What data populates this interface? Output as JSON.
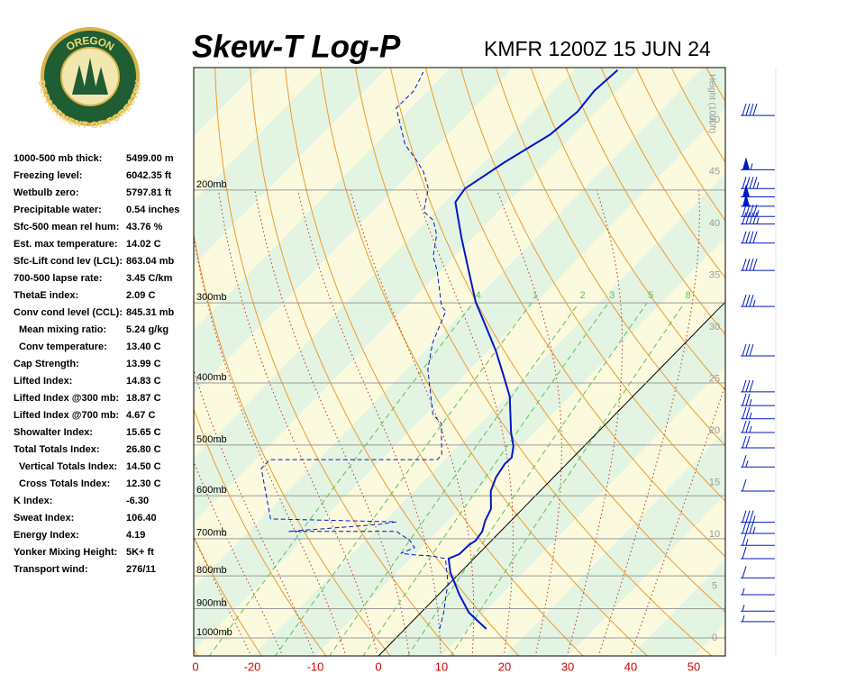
{
  "logo": {
    "top": "OREGON",
    "bottom": "DEPARTMENT OF FORESTRY"
  },
  "title": "Skew-T Log-P",
  "station": "KMFR 1200Z 15 JUN 24",
  "indices": [
    [
      "1000-500 mb thick:",
      "5499.00 m"
    ],
    [
      "Freezing level:",
      "6042.35 ft"
    ],
    [
      "Wetbulb zero:",
      "5797.81 ft"
    ],
    [
      "Precipitable water:",
      "0.54 inches"
    ],
    [
      "Sfc-500 mean rel hum:",
      "43.76 %"
    ],
    [
      "Est. max temperature:",
      "14.02 C"
    ],
    [
      "Sfc-Lift cond lev (LCL):",
      "863.04 mb"
    ],
    [
      "700-500 lapse rate:",
      "3.45 C/km"
    ],
    [
      "ThetaE index:",
      "2.09 C"
    ],
    [
      "Conv cond level (CCL):",
      "845.31 mb"
    ],
    [
      "Mean mixing ratio:",
      "5.24 g/kg"
    ],
    [
      "Conv temperature:",
      "13.40 C"
    ],
    [
      "Cap Strength:",
      "13.99 C"
    ],
    [
      "Lifted Index:",
      "14.83 C"
    ],
    [
      "Lifted Index @300 mb:",
      "18.87 C"
    ],
    [
      "Lifted Index @700 mb:",
      "4.67 C"
    ],
    [
      "Showalter Index:",
      "15.65 C"
    ],
    [
      "Total Totals Index:",
      "26.80 C"
    ],
    [
      "Vertical Totals Index:",
      "14.50 C"
    ],
    [
      "Cross Totals Index:",
      "12.30 C"
    ],
    [
      "K Index:",
      "-6.30"
    ],
    [
      "Sweat Index:",
      "106.40"
    ],
    [
      "Energy Index:",
      "4.19"
    ],
    [
      "Yonker Mixing Height:",
      "5K+ ft"
    ],
    [
      "Transport wind:",
      "276/11"
    ]
  ],
  "chart_data": {
    "type": "skewt",
    "height_label": "Height (1000ft)",
    "pressure_levels": [
      {
        "value": 200,
        "label": "200mb"
      },
      {
        "value": 300,
        "label": "300mb"
      },
      {
        "value": 400,
        "label": "400mb"
      },
      {
        "value": 500,
        "label": "500mb"
      },
      {
        "value": 600,
        "label": "600mb"
      },
      {
        "value": 700,
        "label": "700mb"
      },
      {
        "value": 800,
        "label": "800mb"
      },
      {
        "value": 900,
        "label": "900mb"
      },
      {
        "value": 1000,
        "label": "1000mb"
      }
    ],
    "xticks": [
      {
        "value": -29,
        "label": "0"
      },
      -20,
      -10,
      0,
      10,
      20,
      30,
      40,
      50
    ],
    "height_ticks": [
      0,
      5,
      10,
      15,
      20,
      25,
      30,
      35,
      40,
      45,
      50
    ],
    "mixing_ratios": [
      {
        "value": 0.4,
        "label": ".4"
      },
      1,
      2,
      3,
      5,
      8
    ],
    "series": [
      {
        "color": "#0018c8",
        "pressure": [
          968,
          913,
          856,
          823,
          790,
          752,
          740,
          717,
          705,
          682,
          656,
          629,
          590,
          562,
          535,
          523,
          502,
          478,
          420,
          394,
          357,
          329,
          299,
          267,
          238,
          220,
          209,
          199,
          181,
          164,
          151,
          140,
          130
        ],
        "values": [
          12.9,
          7.6,
          3.3,
          0.9,
          -1.6,
          -4.0,
          -3.0,
          -2.9,
          -2.5,
          -2.9,
          -4.1,
          -5.0,
          -7.8,
          -9.1,
          -9.8,
          -9.7,
          -11.2,
          -13.7,
          -19.5,
          -23.1,
          -28.7,
          -33.7,
          -39.6,
          -45.6,
          -51.7,
          -55.7,
          -58.3,
          -58.9,
          -56.7,
          -53.8,
          -53.0,
          -53.6,
          -53.1
        ]
      },
      {
        "color": "#0018c8",
        "dashed": true,
        "pressure": [
          968,
          913,
          856,
          823,
          752,
          745,
          742,
          738,
          723,
          705,
          682,
          682,
          665,
          659,
          652,
          544,
          527,
          527,
          518,
          494,
          463,
          448,
          420,
          381,
          346,
          309,
          304,
          267,
          254,
          235,
          223,
          216,
          199,
          187,
          178,
          170,
          149,
          140,
          131
        ],
        "values": [
          5.5,
          3.6,
          1.2,
          -0.2,
          -4.5,
          -7.0,
          -10.0,
          -12.4,
          -11.1,
          -12.9,
          -16.5,
          -33.6,
          -20.4,
          -18.0,
          -38.4,
          -47.7,
          -47.7,
          -21.2,
          -21.2,
          -23.3,
          -26.1,
          -28.9,
          -32.0,
          -36.7,
          -40.1,
          -42.9,
          -44.3,
          -50.6,
          -53.4,
          -56.2,
          -59.0,
          -61.9,
          -64.7,
          -68.2,
          -71.7,
          -75.2,
          -82.3,
          -82.2,
          -83.6
        ]
      }
    ],
    "winds": {
      "pressure": [
        153,
        186,
        199,
        205,
        212,
        220,
        226,
        242,
        267,
        304,
        363,
        413,
        434,
        455,
        478,
        505,
        541,
        590,
        660,
        687,
        717,
        752,
        806,
        856,
        908,
        943
      ],
      "speed": [
        40,
        55,
        45,
        50,
        50,
        45,
        45,
        40,
        40,
        35,
        30,
        30,
        25,
        25,
        25,
        20,
        15,
        10,
        35,
        35,
        15,
        10,
        10,
        5,
        5,
        5
      ]
    }
  }
}
